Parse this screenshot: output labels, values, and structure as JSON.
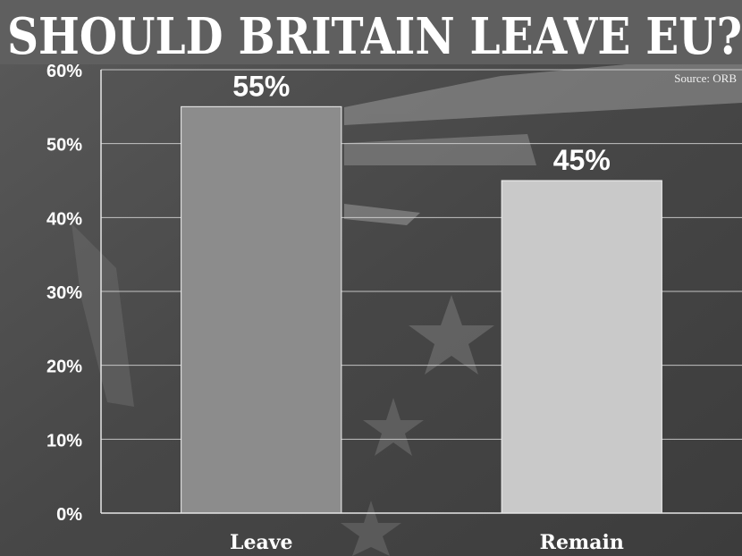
{
  "chart_data": {
    "type": "bar",
    "title": "SHOULD BRITAIN LEAVE EU?",
    "source": "Source: ORB",
    "categories": [
      "Leave",
      "Remain"
    ],
    "values": [
      55,
      45
    ],
    "value_labels": [
      "55%",
      "45%"
    ],
    "ylim": [
      0,
      60
    ],
    "yticks": [
      "0%",
      "10%",
      "20%",
      "30%",
      "40%",
      "50%",
      "60%"
    ],
    "grid": true,
    "colors": {
      "leave": "#8c8c8c",
      "remain": "#c9c9c9",
      "background": "#4d4d4d",
      "text": "#ffffff"
    }
  }
}
